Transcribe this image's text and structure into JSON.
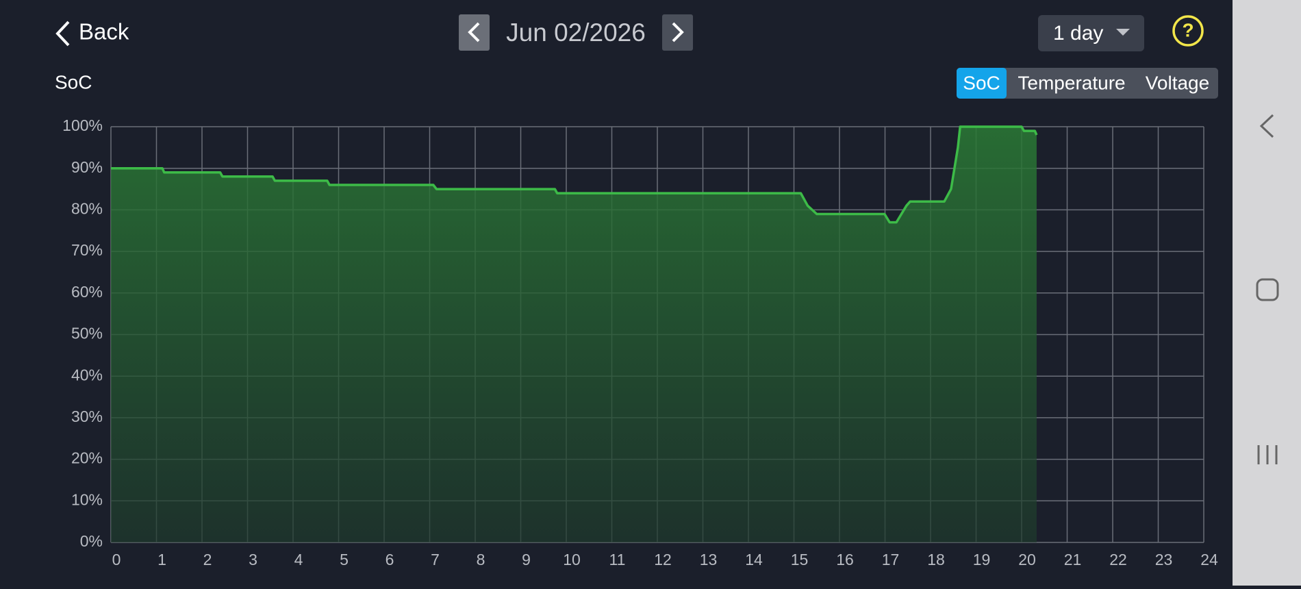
{
  "header": {
    "back": "Back",
    "date": "Jun 02/2026",
    "range": "1 day"
  },
  "chart_label": "SoC",
  "tabs": [
    "SoC",
    "Temperature",
    "Voltage"
  ],
  "chart_data": {
    "type": "line",
    "x": [
      0,
      1.13,
      1.17,
      2.4,
      2.45,
      3.55,
      3.6,
      4.75,
      4.8,
      7.08,
      7.15,
      9.75,
      9.8,
      15.15,
      15.3,
      15.5,
      16.99,
      17.1,
      17.25,
      17.47,
      17.55,
      18.3,
      18.45,
      18.6,
      18.65,
      20.0,
      20.05,
      20.29,
      20.33
    ],
    "values": [
      90,
      90,
      89,
      89,
      88,
      88,
      87,
      87,
      86,
      86,
      85,
      85,
      84,
      84,
      81,
      79,
      79,
      77,
      77,
      81,
      82,
      82,
      85,
      95,
      100,
      100,
      99,
      99,
      98
    ],
    "color": "#3dbb48",
    "xlim": [
      0,
      24
    ],
    "xticks": [
      0,
      1,
      2,
      3,
      4,
      5,
      6,
      7,
      8,
      9,
      10,
      11,
      12,
      13,
      14,
      15,
      16,
      17,
      18,
      19,
      20,
      21,
      22,
      23,
      24
    ],
    "ylim": [
      0,
      100
    ],
    "yticks": [
      {
        "value": 0,
        "label": "0%"
      },
      {
        "value": 10,
        "label": "10%"
      },
      {
        "value": 20,
        "label": "20%"
      },
      {
        "value": 30,
        "label": "30%"
      },
      {
        "value": 40,
        "label": "40%"
      },
      {
        "value": 50,
        "label": "50%"
      },
      {
        "value": 60,
        "label": "60%"
      },
      {
        "value": 70,
        "label": "70%"
      },
      {
        "value": 80,
        "label": "80%"
      },
      {
        "value": 90,
        "label": "90%"
      },
      {
        "value": 100,
        "label": "100%"
      }
    ],
    "grid": true
  }
}
